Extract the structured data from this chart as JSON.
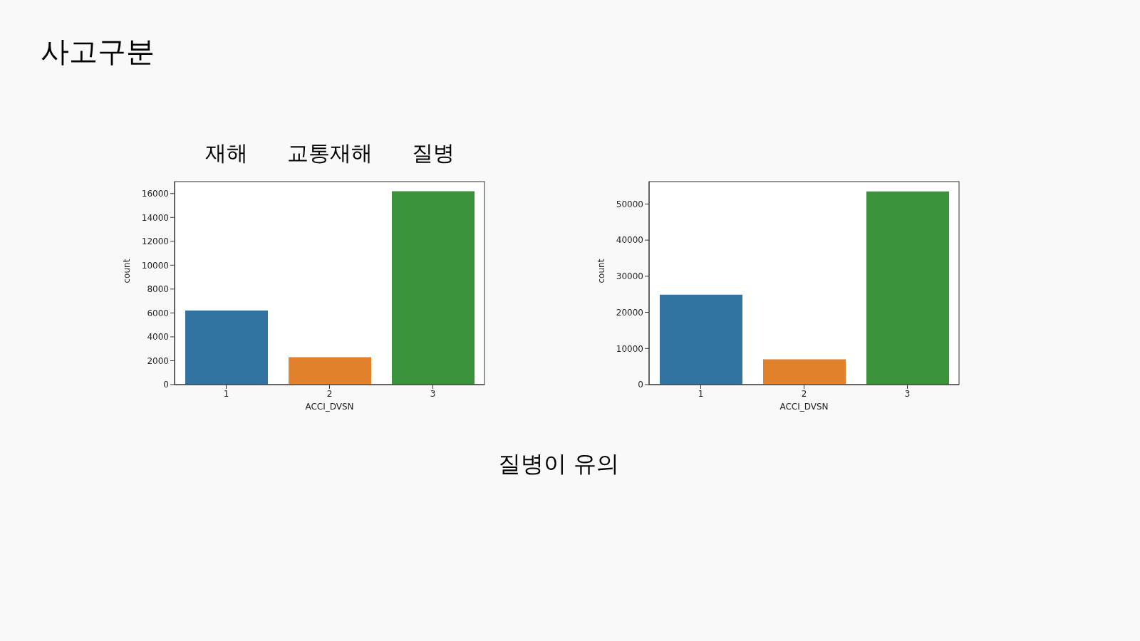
{
  "chart_data": [
    {
      "type": "bar",
      "title": "사고구분",
      "categories": [
        "1",
        "2",
        "3"
      ],
      "values": [
        6200,
        2300,
        16200
      ],
      "colors": [
        "#3274a1",
        "#e1812c",
        "#3a923a"
      ],
      "xlabel": "ACCI_DVSN",
      "ylabel": "count",
      "ylim": [
        0,
        17000
      ],
      "yticks": [
        0,
        2000,
        4000,
        6000,
        8000,
        10000,
        12000,
        14000,
        16000
      ],
      "annotations": [
        "재해",
        "교통재해",
        "질병"
      ]
    },
    {
      "type": "bar",
      "categories": [
        "1",
        "2",
        "3"
      ],
      "values": [
        24900,
        7000,
        53500
      ],
      "colors": [
        "#3274a1",
        "#e1812c",
        "#3a923a"
      ],
      "xlabel": "ACCI_DVSN",
      "ylabel": "count",
      "ylim": [
        0,
        56200
      ],
      "yticks": [
        0,
        10000,
        20000,
        30000,
        40000,
        50000
      ],
      "annotations": [
        "질병이 유의"
      ]
    }
  ]
}
